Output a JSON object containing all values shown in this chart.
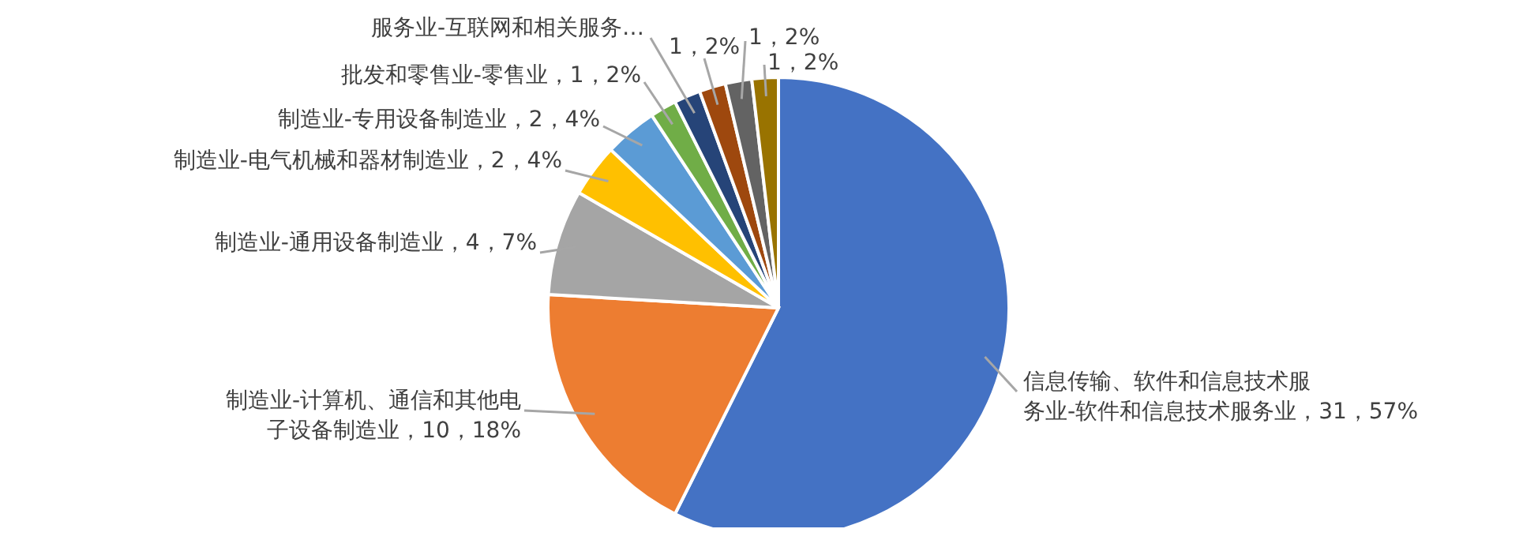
{
  "chart_data": {
    "type": "pie",
    "categories": [
      "信息传输、软件和信息技术服务业-软件和信息技术服务业",
      "制造业-计算机、通信和其他电子设备制造业",
      "制造业-通用设备制造业",
      "制造业-电气机械和器材制造业",
      "制造业-专用设备制造业",
      "批发和零售业-零售业",
      "服务业-互联网和相关服务…",
      null,
      null,
      null
    ],
    "values": [
      31,
      10,
      4,
      2,
      2,
      1,
      1,
      1,
      1,
      1
    ],
    "value_labels": [
      "，31，57%",
      "，10，18%",
      "，4，7%",
      "，2，4%",
      "，2，4%",
      "，1，2%",
      null,
      "1，2%",
      "1，2%",
      "1，2%"
    ],
    "colors": [
      "#4472c4",
      "#ed7d31",
      "#a5a5a5",
      "#ffc000",
      "#5b9bd5",
      "#70ad47",
      "#264478",
      "#9e480e",
      "#636363",
      "#997300"
    ]
  }
}
